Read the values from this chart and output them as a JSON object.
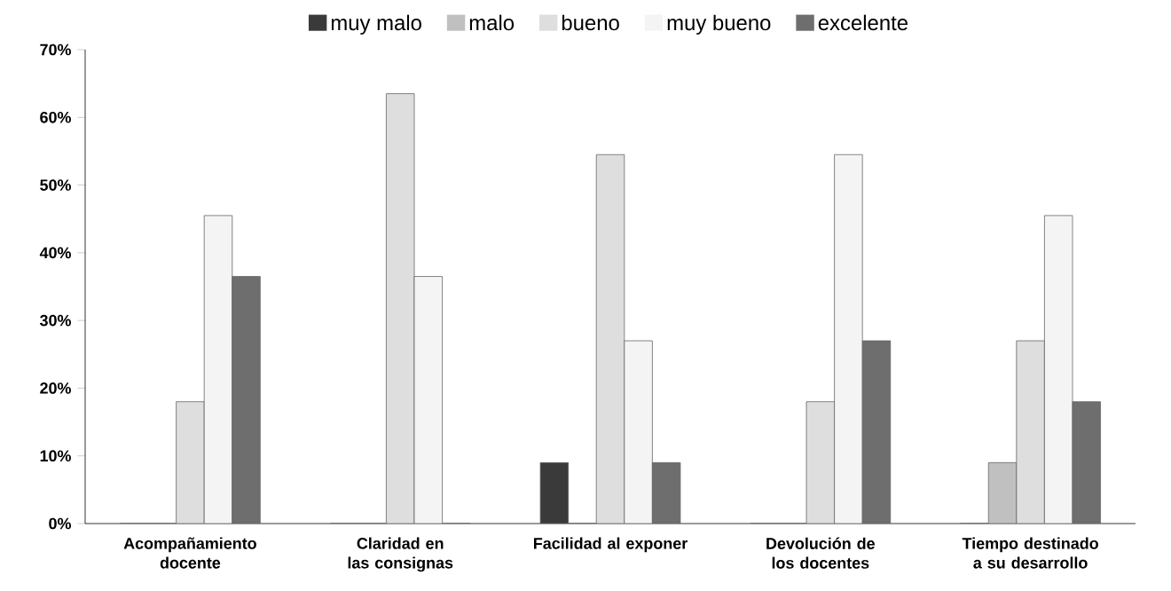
{
  "chart_data": {
    "type": "bar",
    "categories": [
      "Acompañamiento docente",
      "Claridad en las consignas",
      "Facilidad al exponer",
      "Devolución de los docentes",
      "Tiempo destinado a su desarrollo"
    ],
    "series": [
      {
        "name": "muy malo",
        "color": "#3a3a3a",
        "values": [
          0,
          0,
          9,
          0,
          0
        ]
      },
      {
        "name": "malo",
        "color": "#c0c0c0",
        "values": [
          0,
          0,
          0,
          0,
          9
        ]
      },
      {
        "name": "bueno",
        "color": "#dedede",
        "values": [
          18,
          63.5,
          54.5,
          18,
          27
        ]
      },
      {
        "name": "muy bueno",
        "color": "#f4f4f4",
        "values": [
          45.5,
          36.5,
          27,
          54.5,
          45.5
        ]
      },
      {
        "name": "excelente",
        "color": "#6e6e6e",
        "values": [
          36.5,
          0,
          9,
          27,
          18
        ]
      }
    ],
    "ylim": [
      0,
      70
    ],
    "yticks": [
      {
        "value": 0,
        "label": "0%"
      },
      {
        "value": 10,
        "label": "10%"
      },
      {
        "value": 20,
        "label": "20%"
      },
      {
        "value": 30,
        "label": "30%"
      },
      {
        "value": 40,
        "label": "40%"
      },
      {
        "value": 50,
        "label": "50%"
      },
      {
        "value": 60,
        "label": "60%"
      },
      {
        "value": 70,
        "label": "70%"
      }
    ],
    "legend": "top"
  }
}
